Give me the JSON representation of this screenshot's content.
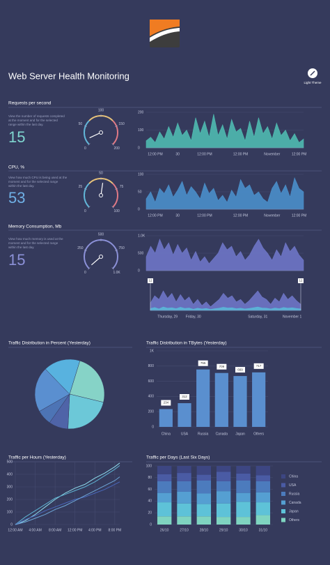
{
  "header": {
    "title": "Web Server Health Monitoring",
    "theme_button": "Light Theme"
  },
  "requests": {
    "title": "Requests per second",
    "description": [
      "View the number of requests completed",
      "at the moment and for the selected",
      "range within the last day."
    ],
    "gauge": {
      "value": 15,
      "value_color": "#7fd6d0",
      "lim": [
        0,
        200
      ],
      "ticks": [
        0,
        50,
        100,
        150,
        200
      ],
      "colors": [
        "#62b6d8",
        "#e7c27a",
        "#e07a86"
      ]
    },
    "chart": {
      "type": "area",
      "color": "#4fbab0",
      "values": [
        40,
        60,
        30,
        90,
        50,
        120,
        60,
        140,
        70,
        100,
        40,
        170,
        80,
        150,
        60,
        190,
        70,
        130,
        50,
        160,
        90,
        110,
        40,
        150,
        60,
        170,
        80,
        120,
        50,
        140,
        70,
        100,
        40,
        80,
        30,
        50
      ],
      "xlim": [
        0,
        35
      ],
      "ylim": [
        0,
        200
      ],
      "yticks": [
        0,
        100,
        200
      ],
      "xticks": [
        {
          "value": 2,
          "label": "12:00 PM"
        },
        {
          "value": 7,
          "label": "30"
        },
        {
          "value": 13,
          "label": "12:00 PM"
        },
        {
          "value": 21,
          "label": "12:00 PM"
        },
        {
          "value": 28,
          "label": "November"
        },
        {
          "value": 34,
          "label": "12:00 PM"
        }
      ]
    }
  },
  "cpu": {
    "title": "CPU, %",
    "description": [
      "View how much CPU is being used at the",
      "moment and for the selected range",
      "within the last day."
    ],
    "gauge": {
      "value": 53,
      "value_color": "#6fb0e6",
      "lim": [
        0,
        100
      ],
      "ticks": [
        0,
        25,
        50,
        75,
        100
      ],
      "colors": [
        "#62b6d8",
        "#e7c27a",
        "#e07a86"
      ]
    },
    "chart": {
      "type": "area",
      "color": "#4a8fca",
      "values": [
        30,
        50,
        20,
        60,
        45,
        70,
        35,
        55,
        80,
        40,
        65,
        50,
        30,
        75,
        45,
        60,
        25,
        40,
        20,
        55,
        35,
        85,
        60,
        70,
        40,
        50,
        30,
        20,
        60,
        80,
        45,
        70,
        35,
        90,
        60,
        50
      ],
      "xlim": [
        0,
        35
      ],
      "ylim": [
        0,
        100
      ],
      "yticks": [
        0,
        50,
        100
      ],
      "xticks": [
        {
          "value": 2,
          "label": "12:00 PM"
        },
        {
          "value": 7,
          "label": "30"
        },
        {
          "value": 13,
          "label": "12:00 PM"
        },
        {
          "value": 21,
          "label": "12:00 PM"
        },
        {
          "value": 28,
          "label": "November"
        },
        {
          "value": 34,
          "label": "12:00 PM"
        }
      ]
    }
  },
  "memory": {
    "title": "Memory Consumption, Mb",
    "description": [
      "View how much memory is used at the",
      "moment and for the selected range",
      "within the last day."
    ],
    "gauge": {
      "value": 15,
      "value_color": "#8c91d8",
      "lim": [
        0,
        1000
      ],
      "ticks": [
        0,
        250,
        500,
        750,
        {
          "value": 1000,
          "label": "1.0K"
        }
      ],
      "colors": [
        "#8c91d8",
        "#8c91d8",
        "#8c91d8"
      ]
    },
    "chart": {
      "type": "area",
      "color": "#6e76c6",
      "values": [
        400,
        700,
        500,
        900,
        600,
        800,
        450,
        750,
        500,
        650,
        300,
        550,
        250,
        400,
        200,
        350,
        500,
        800,
        600,
        700,
        400,
        550,
        300,
        450,
        700,
        900,
        650,
        500,
        300,
        600,
        400,
        800,
        550,
        700,
        450,
        300
      ],
      "xlim": [
        0,
        35
      ],
      "ylim": [
        0,
        1000
      ],
      "yticks": [
        0,
        500,
        {
          "value": 1000,
          "label": "1.0K"
        }
      ],
      "xticks": []
    },
    "range": {
      "type": "area",
      "color": "#6e76c6",
      "color2": "#5ab8d8",
      "values": [
        300,
        600,
        450,
        800,
        500,
        700,
        350,
        650,
        400,
        550,
        250,
        450,
        200,
        350,
        150,
        300,
        450,
        700,
        500,
        600,
        350,
        450,
        250,
        400,
        600,
        800,
        550,
        450,
        250,
        500,
        350,
        700,
        450,
        600,
        400,
        250
      ],
      "values2": [
        80,
        120,
        60,
        140,
        90,
        110,
        70,
        130,
        80,
        100,
        50,
        90,
        60,
        80,
        40,
        70,
        90,
        130,
        100,
        110,
        70,
        90,
        60,
        80,
        110,
        140,
        100,
        90,
        60,
        100,
        70,
        120,
        90,
        110,
        80,
        60
      ],
      "xlim": [
        0,
        35
      ],
      "ylim": [
        0,
        1000
      ],
      "handles": [
        {
          "value": 0,
          "label": "12"
        },
        {
          "value": 35,
          "label": "12"
        }
      ],
      "xticks": [
        {
          "value": 4,
          "label": "Thursday, 29"
        },
        {
          "value": 10,
          "label": "Friday, 30"
        },
        {
          "value": 25,
          "label": "Saturday, 31"
        },
        {
          "value": 33,
          "label": "November 1"
        }
      ]
    }
  },
  "pie": {
    "type": "pie",
    "title": "Traffic Distribution in Percent (Yesterday)",
    "values": [
      24,
      22,
      9,
      7,
      21,
      17
    ],
    "colors": [
      "#86d3c7",
      "#6cc8d8",
      "#4f64a8",
      "#4d74b5",
      "#5a8fd0",
      "#58b2df"
    ]
  },
  "bars": {
    "type": "bar",
    "title": "Traffic Distribution in TBytes (Yesterday)",
    "color": "#5a8fcf",
    "categories": [
      "China",
      "USA",
      "Russia",
      "Canada",
      "Japan",
      "Others"
    ],
    "values": [
      234,
      312,
      755,
      709,
      669,
      717
    ],
    "ylim": [
      0,
      1000
    ],
    "yticks": [
      0,
      200,
      400,
      600,
      800,
      {
        "value": 1000,
        "label": "1K"
      }
    ]
  },
  "hours": {
    "type": "line",
    "title": "Traffic per Hours (Yesterday)",
    "x": [
      0,
      2,
      4,
      6,
      8,
      10,
      12,
      14,
      16,
      18,
      20,
      21
    ],
    "series": [
      {
        "color": "#8fdcec",
        "values": [
          0,
          30,
          80,
          140,
          200,
          250,
          290,
          320,
          370,
          410,
          460,
          490
        ]
      },
      {
        "color": "#5fb4d4",
        "values": [
          0,
          60,
          110,
          160,
          210,
          240,
          270,
          300,
          340,
          390,
          440,
          470
        ]
      },
      {
        "color": "#4a68bc",
        "values": [
          0,
          40,
          70,
          110,
          140,
          170,
          200,
          220,
          250,
          280,
          320,
          340
        ]
      },
      {
        "color": "#6ea6d8",
        "values": [
          0,
          20,
          50,
          80,
          120,
          150,
          190,
          230,
          270,
          310,
          350,
          380
        ]
      }
    ],
    "xlim": [
      0,
      21
    ],
    "ylim": [
      0,
      500
    ],
    "yticks": [
      0,
      100,
      200,
      300,
      400,
      500
    ],
    "xticks": [
      {
        "value": 0,
        "label": "12:00 AM"
      },
      {
        "value": 4,
        "label": "4:00 AM"
      },
      {
        "value": 8,
        "label": "8:00 AM"
      },
      {
        "value": 12,
        "label": "12:00 PM"
      },
      {
        "value": 16,
        "label": "4:00 PM"
      },
      {
        "value": 20,
        "label": "8:00 PM"
      }
    ]
  },
  "days": {
    "type": "stacked_bar",
    "title": "Traffic per Days (Last Six Days)",
    "categories": [
      "26/10",
      "27/10",
      "28/10",
      "29/10",
      "30/10",
      "31/10"
    ],
    "series": [
      {
        "name": "China",
        "color": "#3d4682",
        "values": [
          14,
          12,
          15,
          10,
          13,
          16
        ]
      },
      {
        "name": "USA",
        "color": "#4a5ba4",
        "values": [
          12,
          14,
          10,
          16,
          12,
          10
        ]
      },
      {
        "name": "Russia",
        "color": "#4c7bbd",
        "values": [
          20,
          18,
          22,
          17,
          21,
          19
        ]
      },
      {
        "name": "Canada",
        "color": "#559fd2",
        "values": [
          16,
          20,
          18,
          21,
          15,
          17
        ]
      },
      {
        "name": "Japan",
        "color": "#5ec2d8",
        "values": [
          24,
          22,
          21,
          23,
          26,
          22
        ]
      },
      {
        "name": "Others",
        "color": "#7fd4c0",
        "values": [
          14,
          14,
          14,
          13,
          13,
          16
        ]
      }
    ],
    "ylim": [
      0,
      100
    ],
    "yticks": [
      0,
      20,
      40,
      60,
      80,
      100
    ]
  }
}
